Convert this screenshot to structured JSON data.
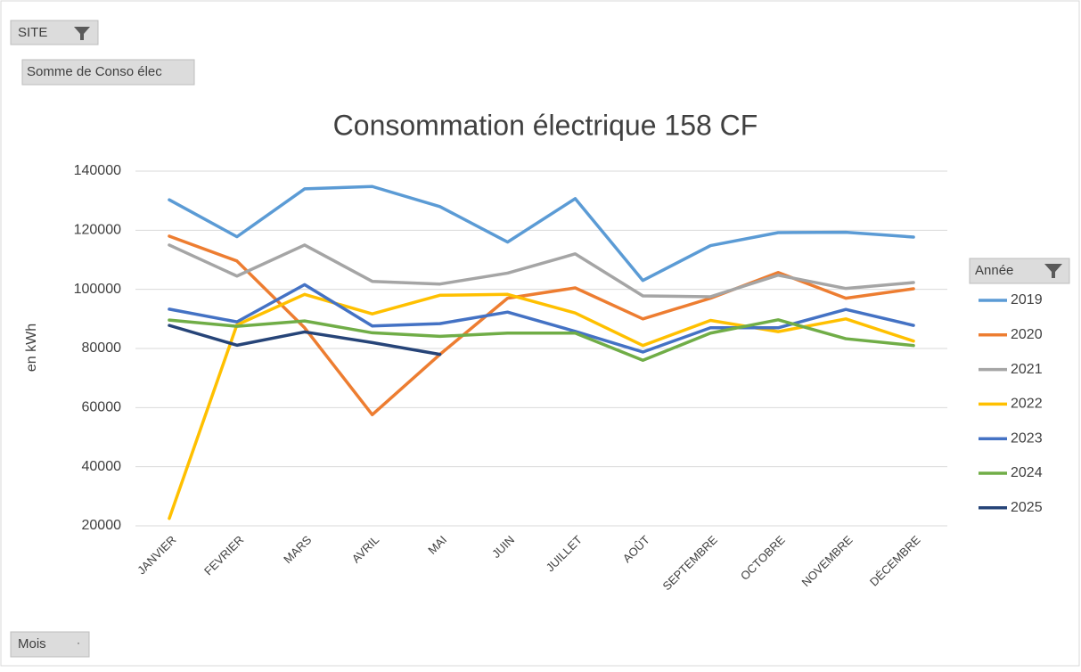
{
  "pivot_fields": {
    "filter": "SITE",
    "value_field": "Somme de Conso élec",
    "axis_field": "Mois"
  },
  "chart_data": {
    "type": "line",
    "title": "Consommation électrique 158 CF",
    "y_label": "en kWh",
    "legend_title": "Année",
    "categories": [
      "JANVIER",
      "FEVRIER",
      "MARS",
      "AVRIL",
      "MAI",
      "JUIN",
      "JUILLET",
      "AOÛT",
      "SEPTEMBRE",
      "OCTOBRE",
      "NOVEMBRE",
      "DÉCEMBRE"
    ],
    "ylim": [
      20000,
      140000
    ],
    "yticks": [
      20000,
      40000,
      60000,
      80000,
      100000,
      120000,
      140000
    ],
    "grid": true,
    "legend": "right",
    "series": [
      {
        "name": "2019",
        "color": "#5b9bd5",
        "values": [
          130300,
          117800,
          134000,
          134800,
          128000,
          116000,
          130700,
          103000,
          114800,
          119200,
          119300,
          117700
        ]
      },
      {
        "name": "2020",
        "color": "#ed7d31",
        "values": [
          118000,
          109600,
          87000,
          57600,
          78000,
          97000,
          100500,
          90000,
          97000,
          105700,
          97000,
          100200
        ]
      },
      {
        "name": "2021",
        "color": "#a5a5a5",
        "values": [
          115000,
          104500,
          115000,
          102700,
          101800,
          105500,
          112000,
          97800,
          97500,
          104800,
          100300,
          102300
        ]
      },
      {
        "name": "2022",
        "color": "#ffc000",
        "values": [
          22500,
          88000,
          98300,
          91700,
          98000,
          98300,
          92000,
          81000,
          89500,
          85700,
          90000,
          82500
        ]
      },
      {
        "name": "2023",
        "color": "#4472c4",
        "values": [
          93300,
          89000,
          101600,
          87600,
          88400,
          92300,
          85800,
          78800,
          87000,
          87000,
          93200,
          87800
        ]
      },
      {
        "name": "2024",
        "color": "#70ad47",
        "values": [
          89600,
          87500,
          89300,
          85300,
          84100,
          85200,
          85200,
          76000,
          85200,
          89700,
          83300,
          81000
        ]
      },
      {
        "name": "2025",
        "color": "#264478",
        "values": [
          87800,
          81100,
          85600,
          82000,
          78000,
          null,
          null,
          null,
          null,
          null,
          null,
          null
        ]
      }
    ]
  }
}
